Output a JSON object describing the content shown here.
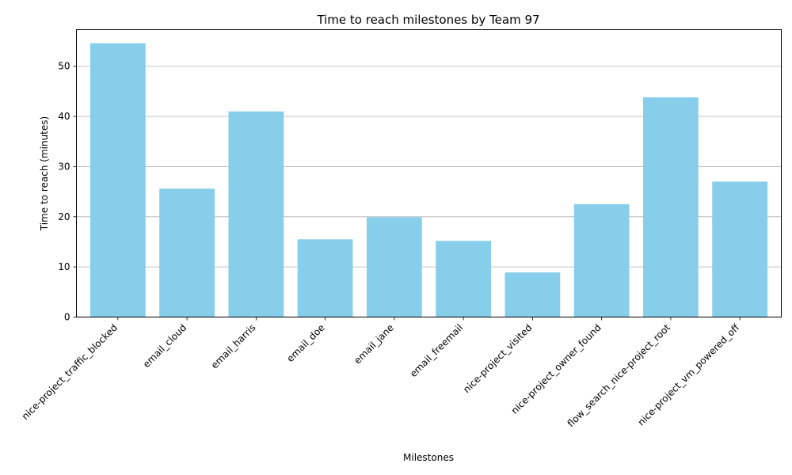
{
  "chart_data": {
    "type": "bar",
    "title": "Time to reach milestones by Team 97",
    "xlabel": "Milestones",
    "ylabel": "Time to reach (minutes)",
    "categories": [
      "nice-project_traffic_blocked",
      "email_cloud",
      "email_harris",
      "email_doe",
      "email_jane",
      "email_freemail",
      "nice-project_visited",
      "nice-project_owner_found",
      "flow_search_nice-project_root",
      "nice-project_vm_powered_off"
    ],
    "values": [
      54.6,
      25.6,
      41.0,
      15.5,
      19.9,
      15.2,
      8.9,
      22.5,
      43.8,
      27.0
    ],
    "ylim": [
      0,
      57.3
    ],
    "yticks": [
      0,
      10,
      20,
      30,
      40,
      50
    ],
    "grid": "y",
    "bar_color": "#87ceeb"
  }
}
